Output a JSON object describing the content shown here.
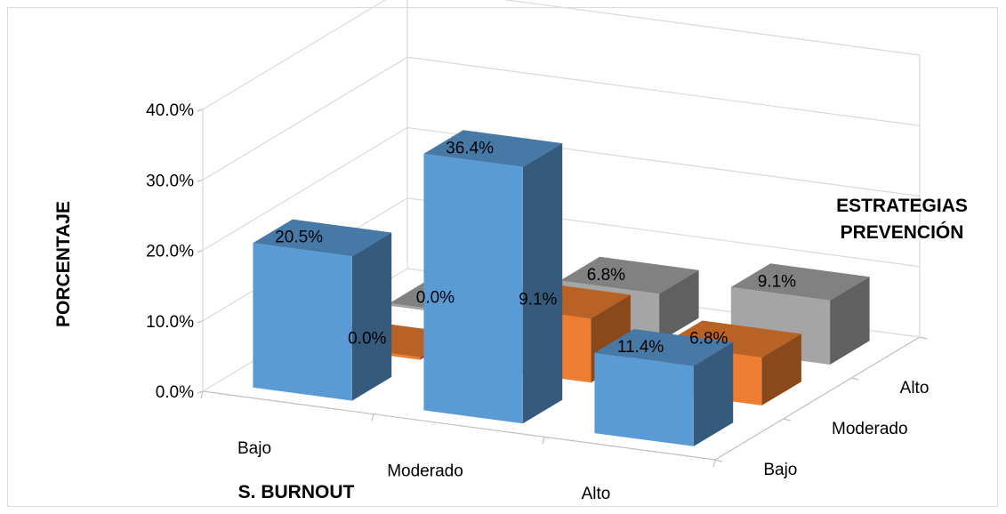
{
  "chart_data": {
    "type": "bar",
    "subtype": "3d-clustered-column",
    "title": "",
    "xlabel": "S. BURNOUT",
    "ylabel": "PORCENTAJE",
    "depth_label": "ESTRATEGIAS PREVENCIÓN",
    "depth_label_lines": [
      "ESTRATEGIAS",
      "PREVENCIÓN"
    ],
    "categories": [
      "Bajo",
      "Moderado",
      "Alto"
    ],
    "series": [
      {
        "name": "Bajo",
        "color": "#5b9bd5",
        "values": [
          20.5,
          36.4,
          11.4
        ],
        "labels": [
          "20.5%",
          "36.4%",
          "11.4%"
        ]
      },
      {
        "name": "Moderado",
        "color": "#ed7d31",
        "values": [
          0.0,
          9.1,
          6.8
        ],
        "labels": [
          "0.0%",
          "9.1%",
          "6.8%"
        ]
      },
      {
        "name": "Alto",
        "color": "#a5a5a5",
        "values": [
          0.0,
          6.8,
          9.1
        ],
        "labels": [
          "0.0%",
          "6.8%",
          "9.1%"
        ]
      }
    ],
    "ylim": [
      0,
      40
    ],
    "yticks": [
      "0.0%",
      "10.0%",
      "20.0%",
      "30.0%",
      "40.0%"
    ],
    "grid": true,
    "legend": "none"
  }
}
